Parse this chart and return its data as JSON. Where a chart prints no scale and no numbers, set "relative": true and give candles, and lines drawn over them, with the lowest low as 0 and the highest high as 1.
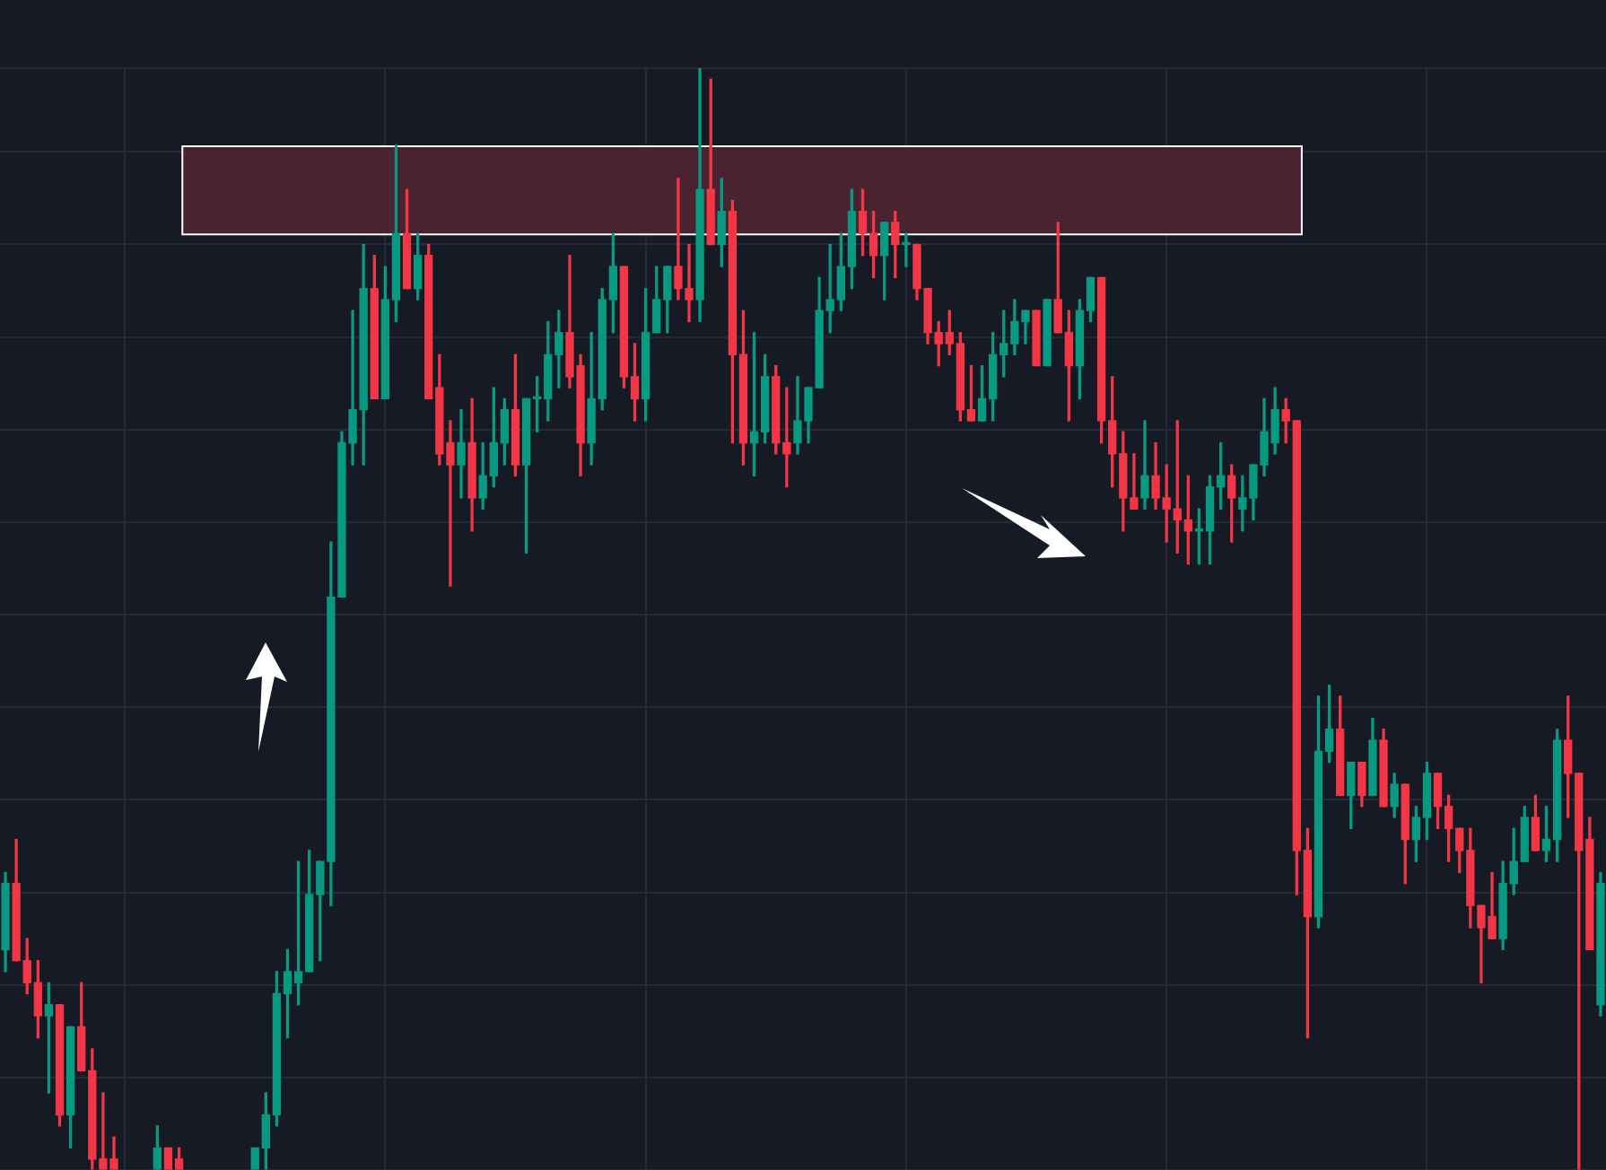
{
  "chart_data": {
    "type": "candlestick",
    "relative": true,
    "grid": true,
    "categories": [
      null,
      null,
      null,
      null,
      null,
      null,
      null,
      null,
      null,
      null,
      null,
      null,
      null,
      null,
      null,
      null,
      null,
      null,
      null,
      null,
      null,
      null,
      null,
      null,
      null,
      null,
      null,
      null,
      null,
      null,
      null,
      null,
      null,
      null,
      null,
      null,
      null,
      null,
      null,
      null,
      null,
      null,
      null,
      null,
      null,
      null,
      null,
      null,
      null,
      null,
      null,
      null,
      null,
      null,
      null,
      null,
      null,
      null,
      null,
      null,
      null,
      null,
      null,
      null,
      null,
      null,
      null,
      null,
      null,
      null,
      null,
      null,
      null,
      null,
      null,
      null,
      null,
      null,
      null,
      null,
      null,
      null,
      null,
      null,
      null,
      null,
      null,
      null,
      null,
      null,
      null,
      null,
      null,
      null,
      null,
      null,
      null,
      null,
      null,
      null,
      null,
      null,
      null,
      null,
      null,
      null,
      null,
      null,
      null,
      null,
      null,
      null,
      null,
      null,
      null,
      null,
      null,
      null,
      null,
      null,
      null,
      null,
      null,
      null,
      null,
      null,
      null,
      null,
      null,
      null,
      null,
      null,
      null,
      null,
      null,
      null,
      null,
      null,
      null,
      null,
      null,
      null,
      null,
      null,
      null,
      null,
      null,
      null
    ],
    "ohlc": [
      [
        0.2,
        0.27,
        0.18,
        0.26
      ],
      [
        0.26,
        0.3,
        0.19,
        0.19
      ],
      [
        0.19,
        0.21,
        0.16,
        0.17
      ],
      [
        0.17,
        0.19,
        0.12,
        0.14
      ],
      [
        0.14,
        0.17,
        0.07,
        0.15
      ],
      [
        0.15,
        0.15,
        0.04,
        0.05
      ],
      [
        0.05,
        0.13,
        0.02,
        0.13
      ],
      [
        0.13,
        0.17,
        0.09,
        0.09
      ],
      [
        0.09,
        0.11,
        0,
        0.01
      ],
      [
        0.01,
        0.07,
        0,
        0
      ],
      [
        0.01,
        0.03,
        0,
        0
      ],
      null,
      null,
      null,
      [
        0,
        0.04,
        0,
        0.02
      ],
      [
        0.02,
        0.02,
        0,
        0
      ],
      [
        0.01,
        0.02,
        0,
        0
      ],
      null,
      null,
      null,
      null,
      null,
      null,
      [
        0,
        0.02,
        0,
        0.02
      ],
      [
        0.02,
        0.07,
        0,
        0.05
      ],
      [
        0.05,
        0.18,
        0.04,
        0.16
      ],
      [
        0.16,
        0.2,
        0.12,
        0.18
      ],
      [
        0.17,
        0.28,
        0.15,
        0.18
      ],
      [
        0.18,
        0.29,
        0.18,
        0.25
      ],
      [
        0.25,
        0.28,
        0.19,
        0.28
      ],
      [
        0.28,
        0.57,
        0.24,
        0.52
      ],
      [
        0.52,
        0.67,
        0.52,
        0.66
      ],
      [
        0.66,
        0.78,
        0.64,
        0.69
      ],
      [
        0.69,
        0.84,
        0.64,
        0.8
      ],
      [
        0.8,
        0.83,
        0.7,
        0.7
      ],
      [
        0.7,
        0.82,
        0.7,
        0.79
      ],
      [
        0.79,
        0.93,
        0.77,
        0.85
      ],
      [
        0.85,
        0.89,
        0.8,
        0.8
      ],
      [
        0.8,
        0.85,
        0.79,
        0.83
      ],
      [
        0.83,
        0.84,
        0.7,
        0.7
      ],
      [
        0.71,
        0.74,
        0.64,
        0.65
      ],
      [
        0.66,
        0.68,
        0.53,
        0.64
      ],
      [
        0.64,
        0.69,
        0.61,
        0.66
      ],
      [
        0.66,
        0.7,
        0.58,
        0.61
      ],
      [
        0.61,
        0.66,
        0.6,
        0.63
      ],
      [
        0.63,
        0.71,
        0.62,
        0.66
      ],
      [
        0.66,
        0.7,
        0.64,
        0.69
      ],
      [
        0.69,
        0.74,
        0.63,
        0.64
      ],
      [
        0.64,
        0.7,
        0.56,
        0.7
      ],
      [
        0.7,
        0.72,
        0.67,
        0.7
      ],
      [
        0.7,
        0.77,
        0.68,
        0.74
      ],
      [
        0.74,
        0.78,
        0.71,
        0.76
      ],
      [
        0.76,
        0.83,
        0.71,
        0.72
      ],
      [
        0.73,
        0.74,
        0.63,
        0.66
      ],
      [
        0.66,
        0.76,
        0.64,
        0.7
      ],
      [
        0.7,
        0.8,
        0.69,
        0.79
      ],
      [
        0.79,
        0.85,
        0.76,
        0.82
      ],
      [
        0.82,
        0.82,
        0.71,
        0.72
      ],
      [
        0.72,
        0.75,
        0.68,
        0.7
      ],
      [
        0.7,
        0.8,
        0.68,
        0.76
      ],
      [
        0.76,
        0.82,
        0.76,
        0.79
      ],
      [
        0.79,
        0.82,
        0.76,
        0.82
      ],
      [
        0.82,
        0.9,
        0.79,
        0.8
      ],
      [
        0.8,
        0.84,
        0.77,
        0.79
      ],
      [
        0.79,
        1,
        0.77,
        0.89
      ],
      [
        0.89,
        0.99,
        0.84,
        0.84
      ],
      [
        0.84,
        0.9,
        0.82,
        0.87
      ],
      [
        0.87,
        0.88,
        0.66,
        0.74
      ],
      [
        0.74,
        0.78,
        0.64,
        0.66
      ],
      [
        0.66,
        0.76,
        0.63,
        0.67
      ],
      [
        0.67,
        0.74,
        0.66,
        0.72
      ],
      [
        0.72,
        0.73,
        0.65,
        0.66
      ],
      [
        0.66,
        0.71,
        0.62,
        0.65
      ],
      [
        0.66,
        0.72,
        0.65,
        0.68
      ],
      [
        0.68,
        0.71,
        0.66,
        0.71
      ],
      [
        0.71,
        0.81,
        0.71,
        0.78
      ],
      [
        0.78,
        0.84,
        0.76,
        0.79
      ],
      [
        0.79,
        0.85,
        0.78,
        0.82
      ],
      [
        0.82,
        0.89,
        0.8,
        0.87
      ],
      [
        0.87,
        0.89,
        0.83,
        0.85
      ],
      [
        0.85,
        0.87,
        0.81,
        0.83
      ],
      [
        0.83,
        0.86,
        0.79,
        0.86
      ],
      [
        0.86,
        0.87,
        0.81,
        0.84
      ],
      [
        0.84,
        0.85,
        0.82,
        0.84
      ],
      [
        0.84,
        0.84,
        0.79,
        0.8
      ],
      [
        0.8,
        0.8,
        0.75,
        0.76
      ],
      [
        0.76,
        0.77,
        0.73,
        0.75
      ],
      [
        0.76,
        0.78,
        0.74,
        0.75
      ],
      [
        0.75,
        0.76,
        0.68,
        0.69
      ],
      [
        0.69,
        0.73,
        0.68,
        0.68
      ],
      [
        0.68,
        0.73,
        0.68,
        0.7
      ],
      [
        0.7,
        0.76,
        0.68,
        0.74
      ],
      [
        0.74,
        0.78,
        0.72,
        0.75
      ],
      [
        0.75,
        0.79,
        0.74,
        0.77
      ],
      [
        0.77,
        0.78,
        0.75,
        0.78
      ],
      [
        0.78,
        0.78,
        0.73,
        0.73
      ],
      [
        0.73,
        0.79,
        0.73,
        0.79
      ],
      [
        0.79,
        0.86,
        0.76,
        0.76
      ],
      [
        0.76,
        0.78,
        0.68,
        0.73
      ],
      [
        0.73,
        0.79,
        0.7,
        0.78
      ],
      [
        0.78,
        0.81,
        0.77,
        0.81
      ],
      [
        0.81,
        0.81,
        0.66,
        0.68
      ],
      [
        0.68,
        0.72,
        0.62,
        0.65
      ],
      [
        0.65,
        0.67,
        0.58,
        0.61
      ],
      [
        0.61,
        0.65,
        0.6,
        0.6
      ],
      [
        0.61,
        0.68,
        0.6,
        0.63
      ],
      [
        0.63,
        0.66,
        0.6,
        0.61
      ],
      [
        0.61,
        0.64,
        0.57,
        0.6
      ],
      [
        0.6,
        0.68,
        0.56,
        0.59
      ],
      [
        0.59,
        0.63,
        0.55,
        0.58
      ],
      [
        0.58,
        0.6,
        0.55,
        0.58
      ],
      [
        0.58,
        0.63,
        0.55,
        0.62
      ],
      [
        0.62,
        0.66,
        0.6,
        0.63
      ],
      [
        0.63,
        0.64,
        0.57,
        0.61
      ],
      [
        0.6,
        0.63,
        0.58,
        0.61
      ],
      [
        0.61,
        0.64,
        0.59,
        0.64
      ],
      [
        0.64,
        0.7,
        0.63,
        0.67
      ],
      [
        0.66,
        0.71,
        0.65,
        0.69
      ],
      [
        0.69,
        0.7,
        0.66,
        0.68
      ],
      [
        0.68,
        0.68,
        0.25,
        0.29
      ],
      [
        0.29,
        0.31,
        0.12,
        0.23
      ],
      [
        0.23,
        0.43,
        0.22,
        0.38
      ],
      [
        0.38,
        0.44,
        0.37,
        0.4
      ],
      [
        0.4,
        0.43,
        0.34,
        0.34
      ],
      [
        0.34,
        0.37,
        0.31,
        0.37
      ],
      [
        0.37,
        0.37,
        0.33,
        0.34
      ],
      [
        0.34,
        0.41,
        0.34,
        0.39
      ],
      [
        0.39,
        0.4,
        0.33,
        0.33
      ],
      [
        0.33,
        0.36,
        0.32,
        0.35
      ],
      [
        0.35,
        0.35,
        0.26,
        0.3
      ],
      [
        0.3,
        0.33,
        0.28,
        0.32
      ],
      [
        0.32,
        0.37,
        0.3,
        0.36
      ],
      [
        0.36,
        0.36,
        0.31,
        0.33
      ],
      [
        0.33,
        0.34,
        0.28,
        0.31
      ],
      [
        0.31,
        0.31,
        0.27,
        0.29
      ],
      [
        0.29,
        0.31,
        0.22,
        0.24
      ],
      [
        0.24,
        0.24,
        0.17,
        0.22
      ],
      [
        0.23,
        0.27,
        0.21,
        0.21
      ],
      [
        0.21,
        0.28,
        0.2,
        0.26
      ],
      [
        0.26,
        0.31,
        0.25,
        0.28
      ],
      [
        0.28,
        0.33,
        0.28,
        0.32
      ],
      [
        0.32,
        0.34,
        0.29,
        0.29
      ],
      [
        0.29,
        0.33,
        0.28,
        0.3
      ],
      [
        0.3,
        0.4,
        0.28,
        0.39
      ],
      [
        0.39,
        0.43,
        0.32,
        0.36
      ],
      [
        0.36,
        0.36,
        0,
        0.29
      ],
      [
        0.3,
        0.32,
        0.2,
        0.2
      ],
      [
        0.15,
        0.27,
        0.14,
        0.26
      ]
    ],
    "colors": [
      "#089981",
      "#f23645",
      "#f23645",
      "#f23645",
      "#089981",
      "#f23645",
      "#089981",
      "#f23645",
      "#f23645",
      "#f23645",
      "#f23645",
      null,
      null,
      null,
      "#089981",
      "#f23645",
      "#f23645",
      null,
      null,
      null,
      null,
      null,
      null,
      "#089981",
      "#089981",
      "#089981",
      "#089981",
      "#089981",
      "#089981",
      "#089981",
      "#089981",
      "#089981",
      "#089981",
      "#089981",
      "#f23645",
      "#089981",
      "#089981",
      "#f23645",
      "#089981",
      "#f23645",
      "#f23645",
      "#f23645",
      "#089981",
      "#f23645",
      "#089981",
      "#089981",
      "#089981",
      "#f23645",
      "#089981",
      "#089981",
      "#089981",
      "#089981",
      "#f23645",
      "#f23645",
      "#089981",
      "#089981",
      "#089981",
      "#f23645",
      "#f23645",
      "#089981",
      "#089981",
      "#089981",
      "#f23645",
      "#f23645",
      "#089981",
      "#f23645",
      "#089981",
      "#f23645",
      "#f23645",
      "#089981",
      "#089981",
      "#f23645",
      "#f23645",
      "#089981",
      "#089981",
      "#089981",
      "#089981",
      "#089981",
      "#089981",
      "#f23645",
      "#f23645",
      "#089981",
      "#f23645",
      "#089981",
      "#f23645",
      "#f23645",
      "#f23645",
      "#f23645",
      "#f23645",
      "#f23645",
      "#089981",
      "#089981",
      "#089981",
      "#089981",
      "#089981",
      "#f23645",
      "#089981",
      "#f23645",
      "#f23645",
      "#089981",
      "#089981",
      "#f23645",
      "#f23645",
      "#f23645",
      "#f23645",
      "#089981",
      "#f23645",
      "#f23645",
      "#f23645",
      "#f23645",
      "#089981",
      "#089981",
      "#089981",
      "#f23645",
      "#089981",
      "#089981",
      "#089981",
      "#089981",
      "#f23645",
      "#f23645",
      "#f23645",
      "#089981",
      "#089981",
      "#f23645",
      "#089981",
      "#f23645",
      "#089981",
      "#f23645",
      "#089981",
      "#f23645",
      "#089981",
      "#089981",
      "#f23645",
      "#f23645",
      "#f23645",
      "#f23645",
      "#f23645",
      "#f23645",
      "#089981",
      "#089981",
      "#089981",
      "#f23645",
      "#089981",
      "#089981",
      "#f23645",
      "#f23645",
      "#f23645",
      "#089981"
    ],
    "bands": [
      {
        "axis": "y",
        "from": 0.85,
        "to": 0.93,
        "color": "#4a2330"
      }
    ]
  }
}
